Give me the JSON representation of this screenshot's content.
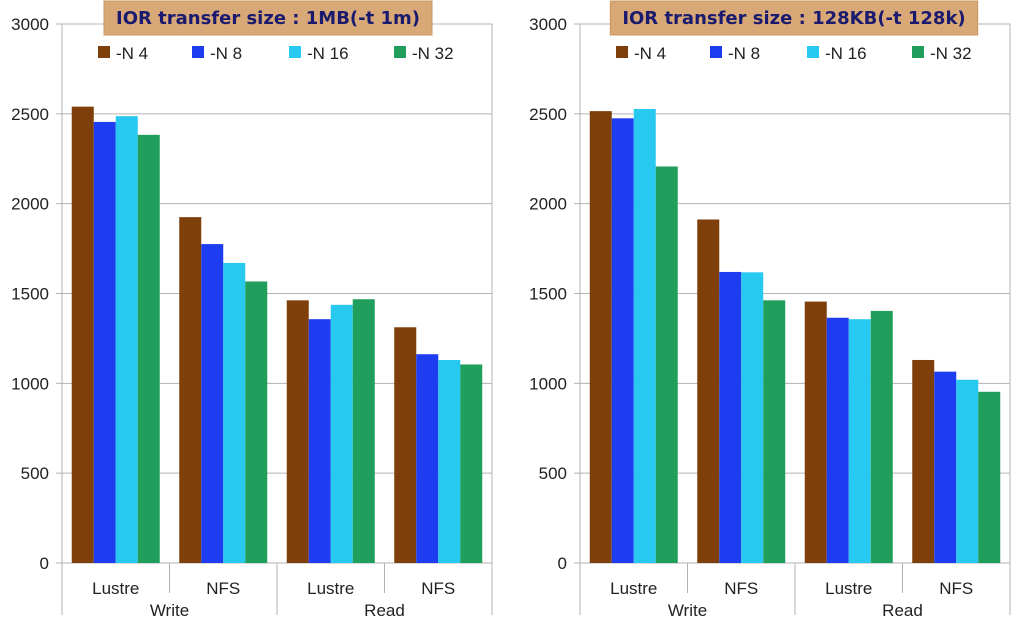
{
  "chart_data": [
    {
      "type": "bar",
      "title": "IOR transfer size : 1MB(-t 1m)",
      "groups": [
        {
          "label": "Write",
          "categories": [
            "Lustre",
            "NFS"
          ]
        },
        {
          "label": "Read",
          "categories": [
            "Lustre",
            "NFS"
          ]
        }
      ],
      "categories": [
        "Lustre",
        "NFS",
        "Lustre",
        "NFS"
      ],
      "series": [
        {
          "name": "-N 4",
          "color": "#7f3f0a",
          "values": [
            2540,
            1925,
            1462,
            1312
          ]
        },
        {
          "name": "-N 8",
          "color": "#1e3cf0",
          "values": [
            2455,
            1775,
            1357,
            1162
          ]
        },
        {
          "name": "-N 16",
          "color": "#27c9f0",
          "values": [
            2487,
            1670,
            1437,
            1130
          ]
        },
        {
          "name": "-N 32",
          "color": "#1f9e5c",
          "values": [
            2383,
            1567,
            1468,
            1105
          ]
        }
      ],
      "ylim": [
        0,
        3000
      ],
      "yticks": [
        0,
        500,
        1000,
        1500,
        2000,
        2500,
        3000
      ],
      "grid": true,
      "legend": "top"
    },
    {
      "type": "bar",
      "title": "IOR transfer size : 128KB(-t 128k)",
      "groups": [
        {
          "label": "Write",
          "categories": [
            "Lustre",
            "NFS"
          ]
        },
        {
          "label": "Read",
          "categories": [
            "Lustre",
            "NFS"
          ]
        }
      ],
      "categories": [
        "Lustre",
        "NFS",
        "Lustre",
        "NFS"
      ],
      "series": [
        {
          "name": "-N 4",
          "color": "#7f3f0a",
          "values": [
            2515,
            1912,
            1455,
            1130
          ]
        },
        {
          "name": "-N 8",
          "color": "#1e3cf0",
          "values": [
            2475,
            1620,
            1365,
            1065
          ]
        },
        {
          "name": "-N 16",
          "color": "#27c9f0",
          "values": [
            2527,
            1618,
            1357,
            1020
          ]
        },
        {
          "name": "-N 32",
          "color": "#1f9e5c",
          "values": [
            2207,
            1462,
            1403,
            953
          ]
        }
      ],
      "ylim": [
        0,
        3000
      ],
      "yticks": [
        0,
        500,
        1000,
        1500,
        2000,
        2500,
        3000
      ],
      "grid": true,
      "legend": "top"
    }
  ]
}
